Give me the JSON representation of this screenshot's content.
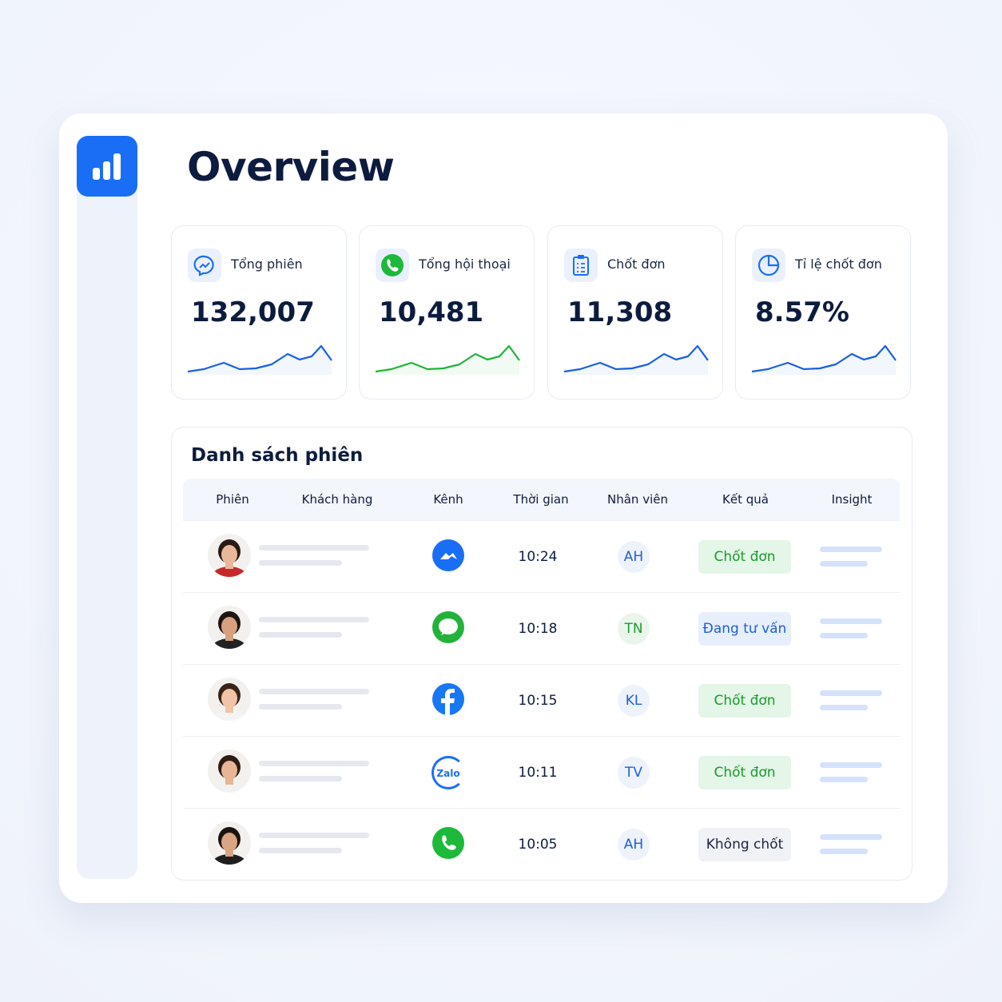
{
  "header": {
    "title": "Overview"
  },
  "stats": [
    {
      "label": "Tổng phiên",
      "value": "132,007"
    },
    {
      "label": "Tổng hội thoại",
      "value": "10,481"
    },
    {
      "label": "Chốt đơn",
      "value": "11,308"
    },
    {
      "label": "Tỉ lệ chốt đơn",
      "value": "8.57%"
    }
  ],
  "table": {
    "title": "Danh sách phiên",
    "columns": [
      "Phiên",
      "Khách hàng",
      "Kênh",
      "Thời gian",
      "Nhân viên",
      "Kết quả",
      "Insight"
    ],
    "rows": [
      {
        "time": "10:24",
        "staff": "AH",
        "result": "Chốt đơn"
      },
      {
        "time": "10:18",
        "staff": "TN",
        "result": "Đang tư vấn"
      },
      {
        "time": "10:15",
        "staff": "KL",
        "result": "Chốt đơn"
      },
      {
        "icon_label": "Zalo",
        "time": "10:11",
        "staff": "TV",
        "result": "Chốt đơn"
      },
      {
        "time": "10:05",
        "staff": "AH",
        "result": "Không chốt"
      }
    ]
  }
}
